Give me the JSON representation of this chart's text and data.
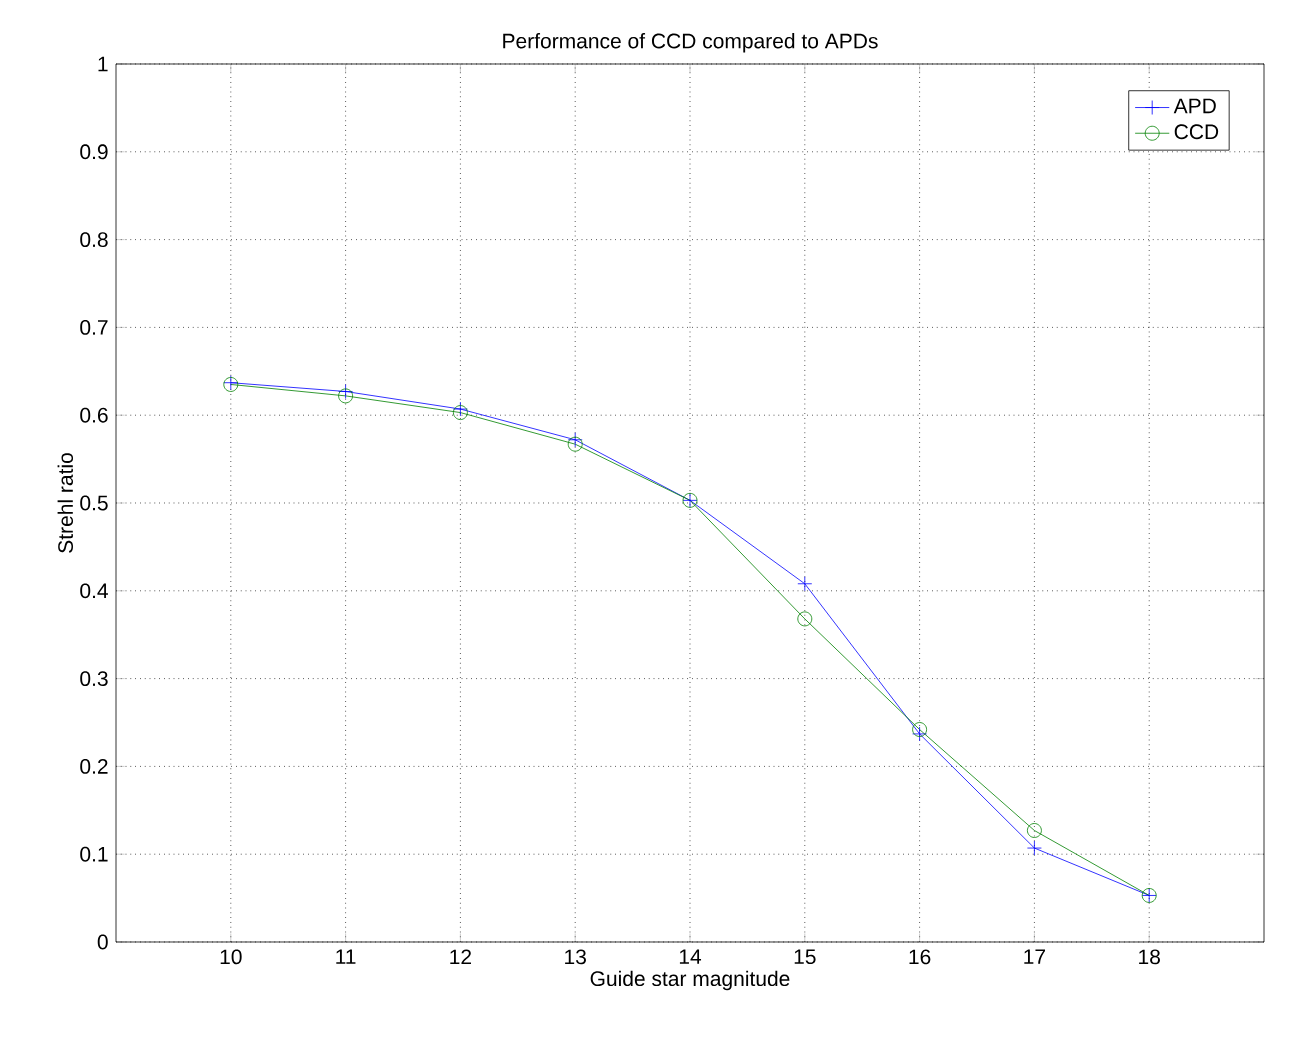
{
  "chart_data": {
    "type": "line",
    "title": "Performance of CCD compared to APDs",
    "xlabel": "Guide star magnitude",
    "ylabel": "Strehl ratio",
    "x": [
      10,
      11,
      12,
      13,
      14,
      15,
      16,
      17,
      18
    ],
    "series": [
      {
        "name": "APD",
        "color": "#0000ff",
        "marker": "cross",
        "values": [
          0.637,
          0.627,
          0.607,
          0.572,
          0.503,
          0.408,
          0.237,
          0.107,
          0.053
        ]
      },
      {
        "name": "CCD",
        "color": "#008000",
        "marker": "circle",
        "values": [
          0.635,
          0.622,
          0.603,
          0.567,
          0.503,
          0.368,
          0.242,
          0.127,
          0.053
        ]
      }
    ],
    "xlim": [
      9,
      19
    ],
    "xticks": [
      10,
      11,
      12,
      13,
      14,
      15,
      16,
      17,
      18
    ],
    "ylim": [
      0,
      1
    ],
    "yticks": [
      0,
      0.1,
      0.2,
      0.3,
      0.4,
      0.5,
      0.6,
      0.7,
      0.8,
      0.9,
      1
    ],
    "grid": true,
    "legend": "top right",
    "line_style": "solid"
  }
}
